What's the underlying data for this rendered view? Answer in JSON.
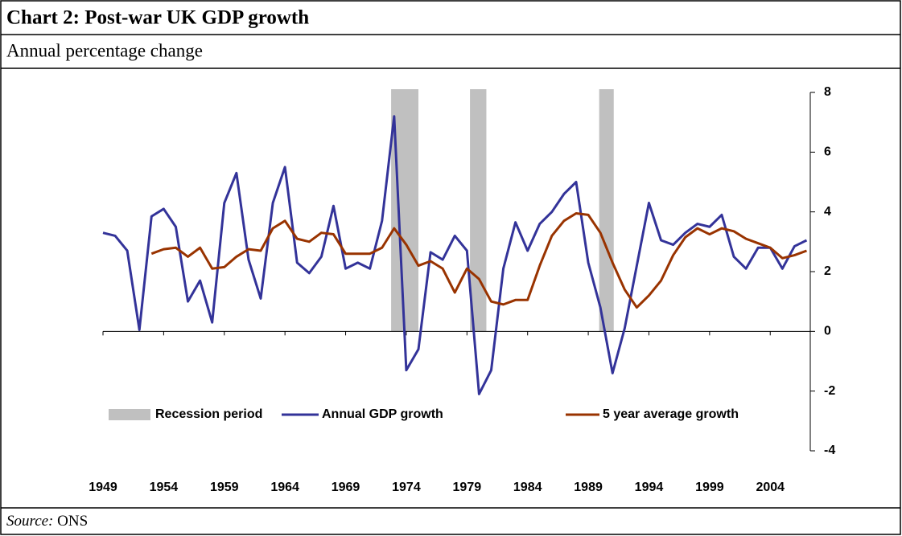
{
  "chart_data": {
    "type": "line",
    "title": "Chart 2: Post-war UK GDP growth",
    "subtitle": "Annual percentage change",
    "source_label": "Source:",
    "source": "ONS",
    "x": [
      1949,
      1950,
      1951,
      1952,
      1953,
      1954,
      1955,
      1956,
      1957,
      1958,
      1959,
      1960,
      1961,
      1962,
      1963,
      1964,
      1965,
      1966,
      1967,
      1968,
      1969,
      1970,
      1971,
      1972,
      1973,
      1974,
      1975,
      1976,
      1977,
      1978,
      1979,
      1980,
      1981,
      1982,
      1983,
      1984,
      1985,
      1986,
      1987,
      1988,
      1989,
      1990,
      1991,
      1992,
      1993,
      1994,
      1995,
      1996,
      1997,
      1998,
      1999,
      2000,
      2001,
      2002,
      2003,
      2004,
      2005,
      2006,
      2007
    ],
    "recessions": {
      "name": "Recession period",
      "color": "#c0c0c0",
      "ranges": [
        [
          1972.75,
          1975
        ],
        [
          1979.25,
          1980.6
        ],
        [
          1989.9,
          1991.1
        ]
      ]
    },
    "series": [
      {
        "name": "Annual GDP growth",
        "color": "#333399",
        "values": [
          3.3,
          3.2,
          2.7,
          0.05,
          3.85,
          4.1,
          3.5,
          1.0,
          1.7,
          0.3,
          4.3,
          5.3,
          2.4,
          1.1,
          4.3,
          5.5,
          2.3,
          1.95,
          2.5,
          4.2,
          2.1,
          2.3,
          2.1,
          3.7,
          7.2,
          -1.3,
          -0.6,
          2.65,
          2.4,
          3.2,
          2.7,
          -2.1,
          -1.3,
          2.1,
          3.65,
          2.7,
          3.6,
          4.0,
          4.6,
          5.0,
          2.3,
          0.8,
          -1.4,
          0.1,
          2.2,
          4.3,
          3.05,
          2.9,
          3.3,
          3.6,
          3.5,
          3.9,
          2.5,
          2.1,
          2.8,
          2.8,
          2.1,
          2.85,
          3.05
        ]
      },
      {
        "name": "5 year average growth",
        "color": "#993300",
        "values": [
          null,
          null,
          null,
          null,
          2.6,
          2.75,
          2.8,
          2.5,
          2.8,
          2.1,
          2.15,
          2.5,
          2.75,
          2.7,
          3.45,
          3.7,
          3.1,
          3.0,
          3.3,
          3.25,
          2.6,
          2.6,
          2.6,
          2.8,
          3.45,
          2.9,
          2.2,
          2.35,
          2.1,
          1.3,
          2.1,
          1.75,
          1.0,
          0.9,
          1.05,
          1.05,
          2.2,
          3.2,
          3.7,
          3.95,
          3.9,
          3.3,
          2.3,
          1.4,
          0.8,
          1.2,
          1.7,
          2.55,
          3.15,
          3.45,
          3.25,
          3.45,
          3.35,
          3.1,
          2.95,
          2.8,
          2.45,
          2.55,
          2.7
        ]
      }
    ],
    "xlim": [
      1949,
      2007.3
    ],
    "xticks": [
      1949,
      1954,
      1959,
      1964,
      1969,
      1974,
      1979,
      1984,
      1989,
      1994,
      1999,
      2004
    ],
    "ylim": [
      -4,
      8
    ],
    "yticks": [
      -4,
      -2,
      0,
      2,
      4,
      6,
      8
    ],
    "y_axis_side": "right",
    "legend": "lower center"
  }
}
